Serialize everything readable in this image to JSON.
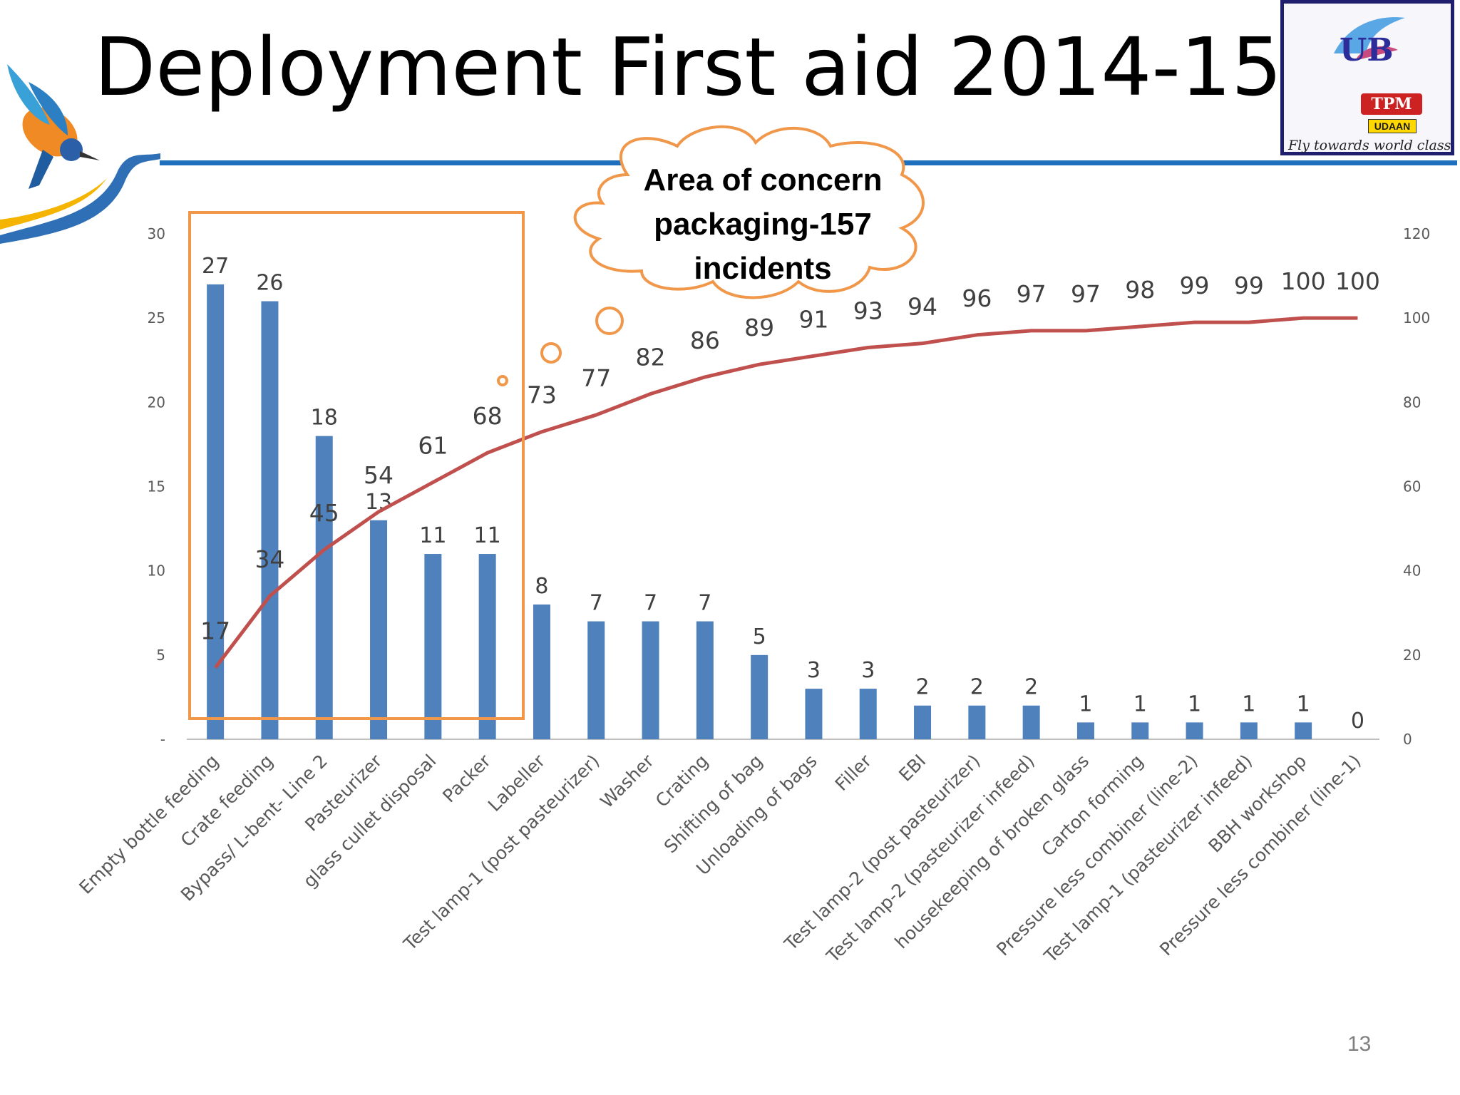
{
  "slide": {
    "title": "Deployment First aid 2014-15",
    "page_number": "13",
    "callout_lines": [
      "Area of concern",
      "packaging-157",
      "incidents"
    ]
  },
  "logo": {
    "letters": "UB",
    "badge": "TPM",
    "ribbon": "UDAAN",
    "tagline": "Fly towards world class"
  },
  "colors": {
    "bar": "#4f81bd",
    "line": "#c0504d",
    "highlight": "#f0974a",
    "header_rule": "#1f6fbf"
  },
  "chart_data": {
    "type": "bar",
    "categories": [
      "Empty bottle feeding",
      "Crate feeding",
      "Bypass/ L-bent- Line 2",
      "Pasteurizer",
      "glass cullet disposal",
      "Packer",
      "Labeller",
      "Test lamp-1 (post pasteurizer)",
      "Washer",
      "Crating",
      "Shifting of bag",
      "Unloading of bags",
      "Filler",
      "EBI",
      "Test lamp-2 (post pasteurizer)",
      "Test lamp-2 (pasteurizer infeed)",
      "housekeeping of broken glass",
      "Carton forming",
      "Pressure less combiner (line-2)",
      "Test lamp-1 (pasteurizer infeed)",
      "BBH workshop",
      "Pressure less combiner (line-1)"
    ],
    "series": [
      {
        "type": "bar",
        "axis": "left",
        "values": [
          27,
          26,
          18,
          13,
          11,
          11,
          8,
          7,
          7,
          7,
          5,
          3,
          3,
          2,
          2,
          2,
          1,
          1,
          1,
          1,
          1,
          0
        ]
      },
      {
        "type": "line",
        "axis": "right",
        "values": [
          17,
          34,
          45,
          54,
          61,
          68,
          73,
          77,
          82,
          86,
          89,
          91,
          93,
          94,
          96,
          97,
          97,
          98,
          99,
          99,
          100,
          100
        ]
      }
    ],
    "ylim_left": [
      0,
      30
    ],
    "yticks_left": [
      "-",
      "5",
      "10",
      "15",
      "20",
      "25",
      "30"
    ],
    "ylim_right": [
      0,
      120
    ],
    "yticks_right": [
      "0",
      "20",
      "40",
      "60",
      "80",
      "100",
      "120"
    ],
    "highlight_range": [
      "Empty bottle feeding",
      "Packer"
    ],
    "grid": false,
    "legend": "none"
  }
}
